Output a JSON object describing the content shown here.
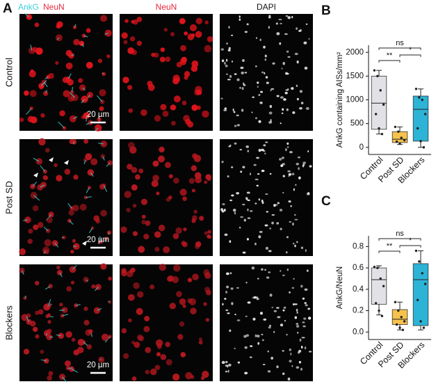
{
  "panel_a": {
    "label": "A",
    "merge_header": [
      "AnkG",
      "NeuN"
    ],
    "column_headers": [
      "NeuN",
      "DAPI"
    ],
    "rows": [
      "Control",
      "Post SD",
      "Blockers"
    ],
    "scale_bar": "20 µm"
  },
  "chart_data": [
    {
      "type": "box",
      "label": "B",
      "ylabel": "AnkG containing AISs/mm²",
      "categories": [
        "Control",
        "Post SD",
        "Blockers"
      ],
      "boxes": [
        {
          "color": "#e2e2e6",
          "min": 280,
          "q1": 380,
          "median": 930,
          "q3": 1500,
          "max": 1620,
          "points": [
            1620,
            1500,
            1200,
            900,
            700,
            400,
            280
          ]
        },
        {
          "color": "#f6c24c",
          "min": 60,
          "q1": 100,
          "median": 170,
          "q3": 330,
          "max": 430,
          "points": [
            430,
            330,
            200,
            150,
            120,
            80
          ]
        },
        {
          "color": "#2cb3d6",
          "min": 0,
          "q1": 130,
          "median": 800,
          "q3": 1080,
          "max": 1230,
          "points": [
            1230,
            1050,
            1000,
            700,
            400,
            130,
            0
          ]
        }
      ],
      "annotations": [
        "ns",
        "**",
        "*"
      ],
      "ylim": [
        -150,
        2150
      ],
      "yticks": [
        0,
        500,
        1000,
        1500,
        2000
      ]
    },
    {
      "type": "box",
      "label": "C",
      "ylabel": "AnkG/NeuN",
      "categories": [
        "Control",
        "Post SD",
        "Blockers"
      ],
      "boxes": [
        {
          "color": "#e2e2e6",
          "min": 0.16,
          "q1": 0.26,
          "median": 0.49,
          "q3": 0.6,
          "max": 0.62,
          "points": [
            0.61,
            0.6,
            0.5,
            0.43,
            0.27,
            0.2,
            0.15
          ]
        },
        {
          "color": "#f6c24c",
          "min": 0.02,
          "q1": 0.07,
          "median": 0.12,
          "q3": 0.21,
          "max": 0.28,
          "points": [
            0.28,
            0.2,
            0.14,
            0.1,
            0.07,
            0.04,
            0.02
          ]
        },
        {
          "color": "#2cb3d6",
          "min": 0.02,
          "q1": 0.06,
          "median": 0.49,
          "q3": 0.64,
          "max": 0.76,
          "points": [
            0.76,
            0.66,
            0.55,
            0.45,
            0.3,
            0.1,
            0.04
          ]
        }
      ],
      "annotations": [
        "ns",
        "**",
        "*"
      ],
      "ylim": [
        -0.07,
        0.9
      ],
      "yticks": [
        {
          "value": 0,
          "label": "0.0"
        },
        {
          "value": 0.2,
          "label": "0.2"
        },
        {
          "value": 0.4,
          "label": "0.4"
        },
        {
          "value": 0.6,
          "label": "0.6"
        },
        {
          "value": 0.8,
          "label": "0.8"
        }
      ]
    }
  ]
}
